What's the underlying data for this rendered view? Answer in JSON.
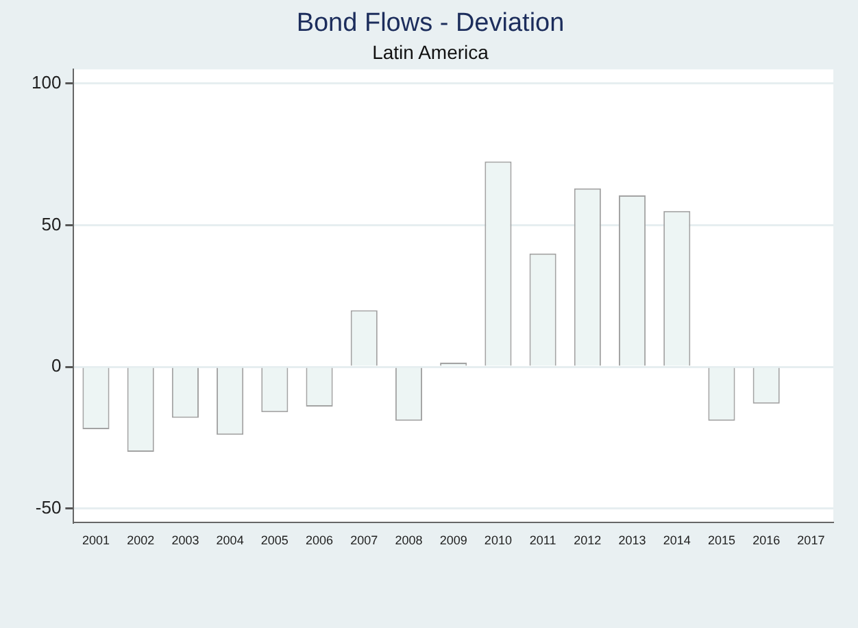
{
  "chart_data": {
    "type": "bar",
    "title": "Bond Flows - Deviation",
    "subtitle": "Latin America",
    "categories": [
      "2001",
      "2002",
      "2003",
      "2004",
      "2005",
      "2006",
      "2007",
      "2008",
      "2009",
      "2010",
      "2011",
      "2012",
      "2013",
      "2014",
      "2015",
      "2016",
      "2017"
    ],
    "values": [
      -22,
      -30,
      -18,
      -24,
      -16,
      -14,
      20,
      -19,
      1.5,
      72.5,
      40,
      63,
      60.5,
      55,
      -19,
      -13,
      null
    ],
    "color": "#edf5f4",
    "ylim": [
      -55,
      105
    ],
    "yticks": [
      -50,
      0,
      50,
      100
    ],
    "grid": "y",
    "legend": false
  }
}
